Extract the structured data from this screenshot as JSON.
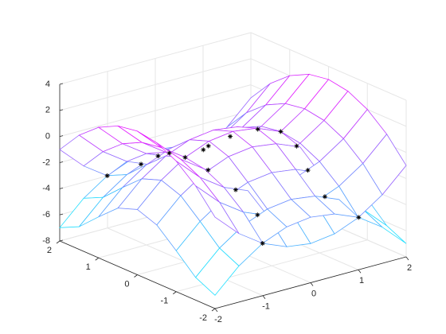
{
  "chart_data": {
    "type": "mesh",
    "x": [
      -2,
      -1.5,
      -1,
      -0.5,
      0,
      0.5,
      1,
      1.5,
      2
    ],
    "y": [
      -2,
      -1.5,
      -1,
      -0.5,
      0,
      0.5,
      1,
      1.5,
      2
    ],
    "surfaces": [
      {
        "z": [
          [
            -1,
            -2.75,
            -4,
            -4.75,
            -5,
            -4.75,
            -4,
            -2.75,
            -1
          ],
          [
            0.75,
            -1,
            -2.25,
            -3,
            -3.25,
            -3,
            -2.25,
            -1,
            0.75
          ],
          [
            2,
            0.25,
            -1,
            -1.75,
            -2,
            -1.75,
            -1,
            0.25,
            2
          ],
          [
            2.75,
            1,
            -0.25,
            -1,
            -1.25,
            -1,
            -0.25,
            1,
            2.75
          ],
          [
            3,
            1.25,
            0,
            -0.75,
            -1,
            -0.75,
            0,
            1.25,
            3
          ],
          [
            2.75,
            1,
            -0.25,
            -1,
            -1.25,
            -1,
            -0.25,
            1,
            2.75
          ],
          [
            2,
            0.25,
            -1,
            -1.75,
            -2,
            -1.75,
            -1,
            0.25,
            2
          ],
          [
            0.75,
            -1,
            -2.25,
            -3,
            -3.25,
            -3,
            -2.25,
            -1,
            0.75
          ],
          [
            -1,
            -2.75,
            -4,
            -4.75,
            -5,
            -4.75,
            -4,
            -2.75,
            -1
          ]
        ]
      },
      {
        "z": [
          [
            -6.98,
            -5.23,
            -3.98,
            -3.23,
            -2.98,
            -3.23,
            -3.98,
            -5.23,
            -6.98
          ],
          [
            -6.26,
            -4.51,
            -3.26,
            -2.51,
            -2.26,
            -2.51,
            -3.26,
            -4.51,
            -6.26
          ],
          [
            -4.86,
            -3.11,
            -1.86,
            -1.11,
            -0.86,
            -1.11,
            -1.86,
            -3.11,
            -4.86
          ],
          [
            -3.54,
            -1.79,
            -0.54,
            0.21,
            0.46,
            0.21,
            -0.54,
            -1.79,
            -3.54
          ],
          [
            -3,
            -1.25,
            0,
            0.75,
            1,
            0.75,
            0,
            -1.25,
            -3
          ],
          [
            -3.54,
            -1.79,
            -0.54,
            0.21,
            0.46,
            0.21,
            -0.54,
            -1.79,
            -3.54
          ],
          [
            -4.86,
            -3.11,
            -1.86,
            -1.11,
            -0.86,
            -1.11,
            -1.86,
            -3.11,
            -4.86
          ],
          [
            -6.26,
            -4.51,
            -3.26,
            -2.51,
            -2.26,
            -2.51,
            -3.26,
            -4.51,
            -6.26
          ],
          [
            -6.98,
            -5.23,
            -3.98,
            -3.23,
            -2.98,
            -3.23,
            -3.98,
            -5.23,
            -6.98
          ]
        ]
      }
    ],
    "colormap": [
      "#00ffff",
      "#ff00ff"
    ],
    "curves": [
      {
        "x": [
          1.005,
          0.705,
          0.755,
          0.926,
          1,
          0.926,
          0.755,
          0.705,
          1.005
        ],
        "y": [
          -2,
          -1.5,
          -1,
          -0.5,
          0,
          0.5,
          1,
          1.5,
          2
        ],
        "z": [
          -3.99,
          -2.753,
          -1.429,
          -0.393,
          0,
          -0.393,
          -1.429,
          -2.753,
          -3.99
        ]
      },
      {
        "x": [
          -1.005,
          -0.705,
          -0.755,
          -0.926,
          -1,
          -0.926,
          -0.755,
          -0.705,
          -1.005
        ],
        "y": [
          -2,
          -1.5,
          -1,
          -0.5,
          0,
          0.5,
          1,
          1.5,
          2
        ],
        "z": [
          -3.99,
          -2.753,
          -1.429,
          -0.393,
          0,
          -0.393,
          -1.429,
          -2.753,
          -3.99
        ]
      }
    ],
    "marker": "*",
    "marker_color": "#000000",
    "xlim": [
      -2,
      2
    ],
    "ylim": [
      -2,
      2
    ],
    "zlim": [
      -8,
      4
    ],
    "xticks": [
      -2,
      -1,
      0,
      1,
      2
    ],
    "yticks": [
      -2,
      -1,
      0,
      1,
      2
    ],
    "zticks": [
      -8,
      -6,
      -4,
      -2,
      0,
      2,
      4
    ],
    "grid": true
  }
}
